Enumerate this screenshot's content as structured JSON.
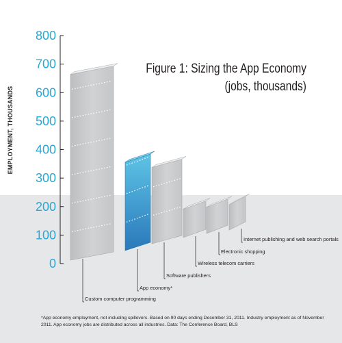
{
  "title_line1": "Figure 1: Sizing the App Economy",
  "title_line2": "(jobs, thousands)",
  "footnote": "*App economy employment, not including spillovers. Based on 90 days ending December 31, 2011. Industry employment as of November 2011. App economy jobs are distributed across all industries. Data: The Conference Board, BLS",
  "colors": {
    "gray_bar": "#d1d2d4",
    "app_bar": "#3fa4d2",
    "tick": "#29a8d6",
    "band": "#e6e7e8"
  },
  "chart_data": {
    "type": "bar",
    "ylabel": "EMPLOYMENT, THOUSANDS",
    "ylim": [
      0,
      800
    ],
    "yticks": [
      "0",
      "100",
      "200",
      "300",
      "400",
      "500",
      "600",
      "700",
      "800"
    ],
    "grid": false,
    "categories": [
      "Custom computer programming",
      "App economy*",
      "Software publishers",
      "Wireless telecom carriers",
      "Electronic shopping",
      "Internet publishing and web search portals"
    ],
    "values": [
      652,
      310,
      268,
      100,
      92,
      89
    ],
    "highlight": "App economy*"
  }
}
